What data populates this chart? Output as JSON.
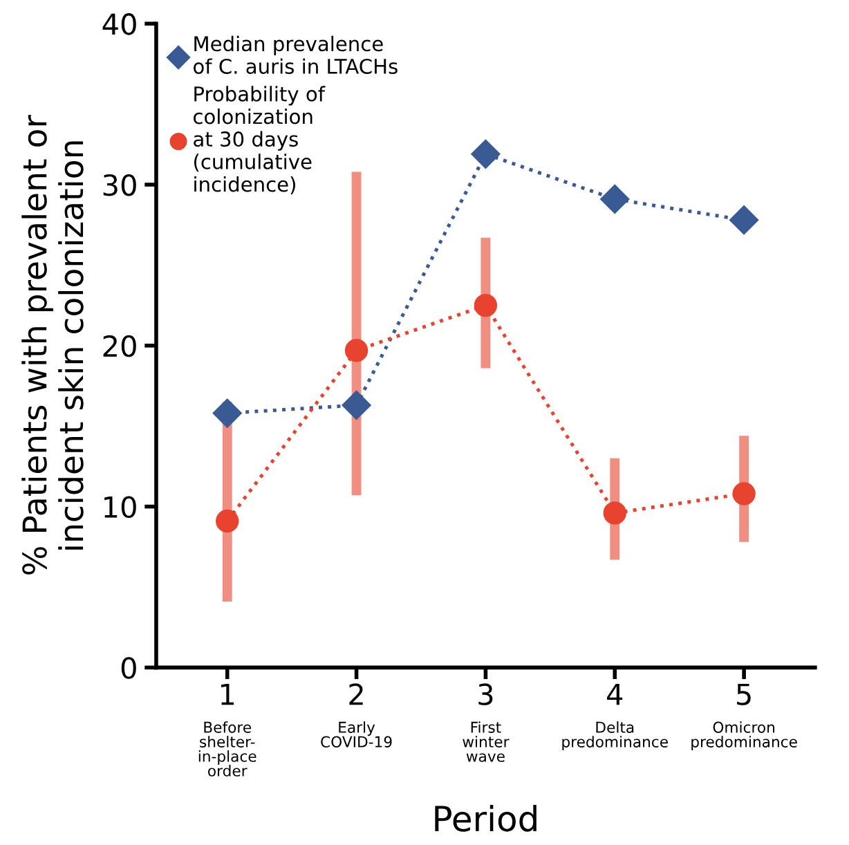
{
  "chart_data": {
    "type": "line",
    "xlabel": "Period",
    "ylabel": "% Patients with prevalent or\nincident skin colonization",
    "categories": [
      "1\nBefore\nshelter-\nin-place\norder",
      "2\nEarly\nCOVID-19",
      "3\nFirst\nwinter\nwave",
      "4\nDelta\npredominance",
      "5\nOmicron\npredominance"
    ],
    "series": [
      {
        "name": "Median prevalence\nof C. auris in LTACHs",
        "color": "#3a5a94",
        "marker": "diamond",
        "line_style": "dotted",
        "values": [
          15.8,
          16.3,
          31.9,
          29.1,
          27.8
        ]
      },
      {
        "name": "Probability of\ncolonization\nat 30 days\n(cumulative\nincidence)",
        "color": "#e8432e",
        "marker": "circle",
        "line_style": "dotted",
        "values": [
          9.1,
          19.7,
          22.5,
          9.6,
          10.8
        ],
        "errors": [
          [
            4.1,
            16.5
          ],
          [
            10.7,
            30.8
          ],
          [
            18.6,
            26.7
          ],
          [
            6.7,
            13.0
          ],
          [
            7.8,
            14.4
          ]
        ]
      }
    ],
    "ylim": [
      0,
      40
    ],
    "yticks": [
      0,
      10,
      20,
      30,
      40
    ],
    "grid": false,
    "legend": "top left"
  }
}
